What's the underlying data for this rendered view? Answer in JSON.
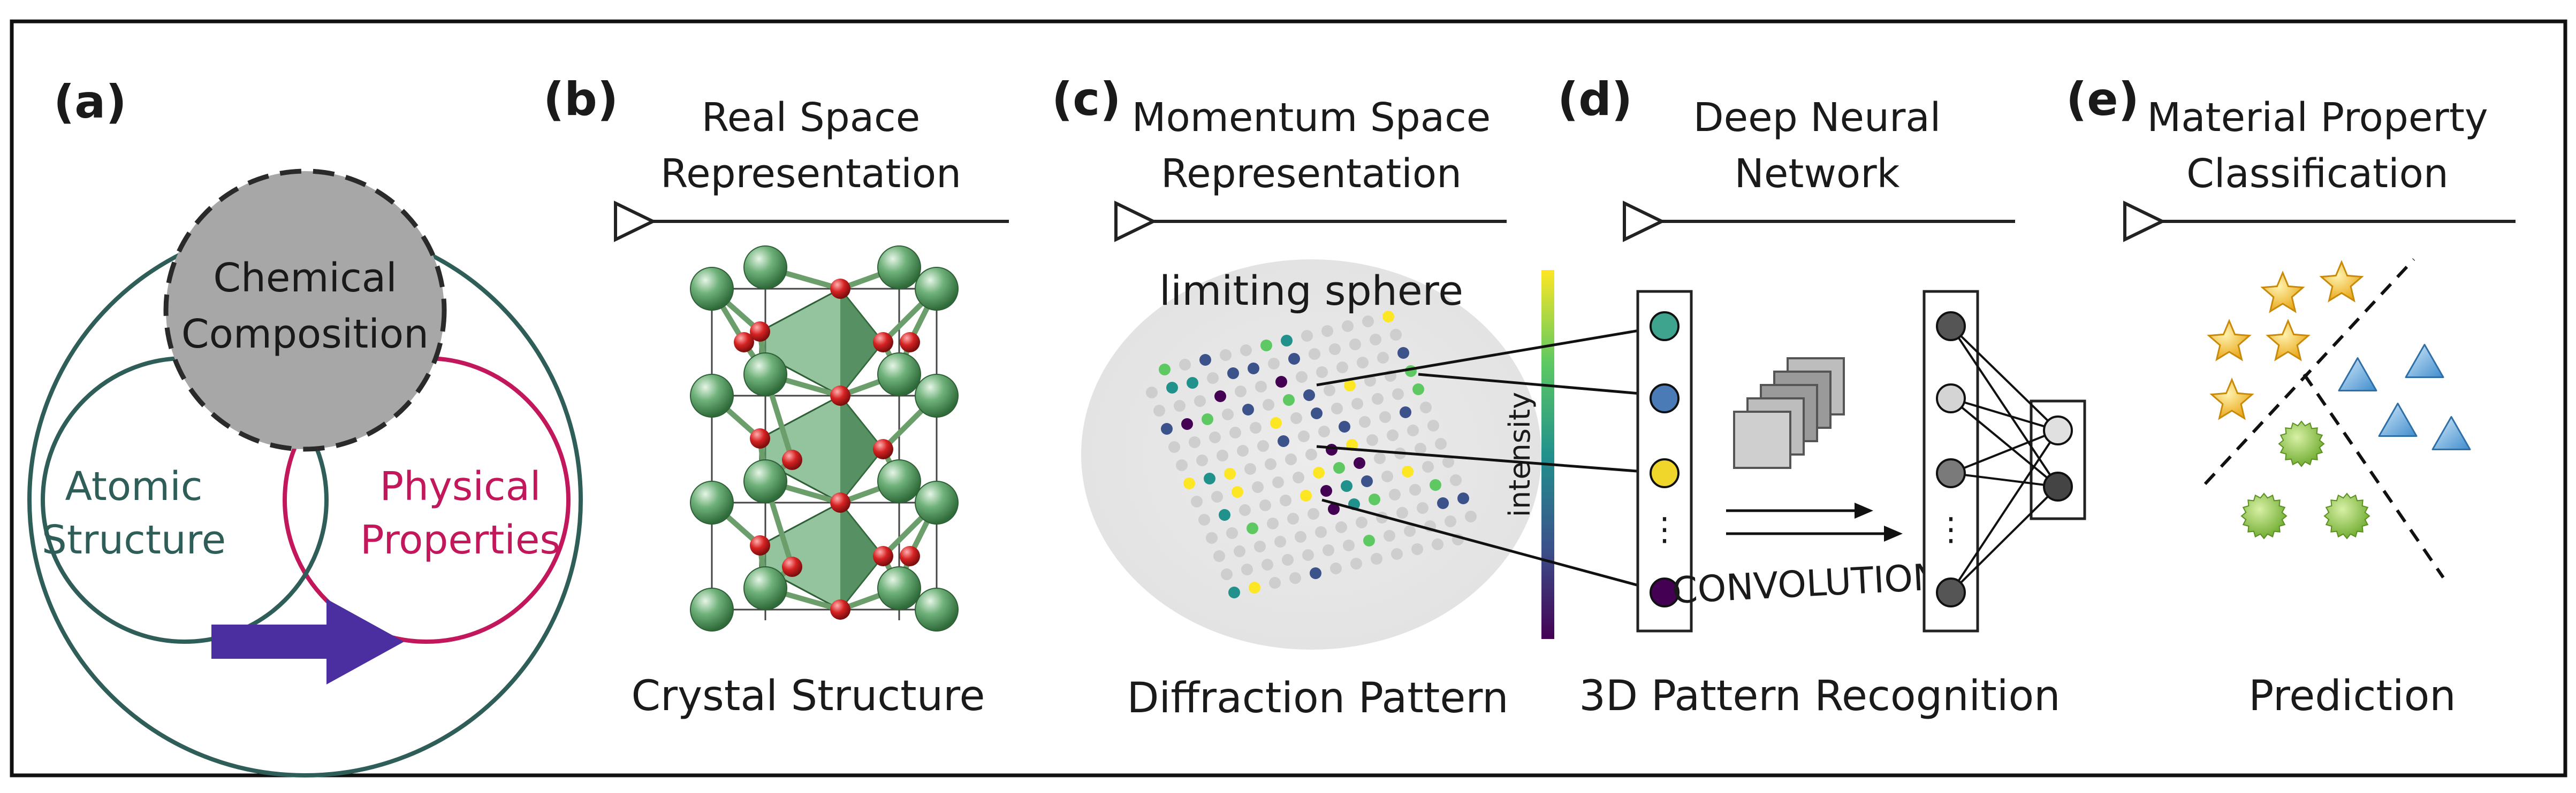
{
  "panels": {
    "a": {
      "letter": "(a)",
      "chemical_line1": "Chemical",
      "chemical_line2": "Composition",
      "atomic_line1": "Atomic",
      "atomic_line2": "Structure",
      "physical_line1": "Physical",
      "physical_line2": "Properties"
    },
    "b": {
      "letter": "(b)",
      "heading_line1": "Real Space",
      "heading_line2": "Representation",
      "caption": "Crystal Structure"
    },
    "c": {
      "letter": "(c)",
      "heading_line1": "Momentum Space",
      "heading_line2": "Representation",
      "sphere_label": "limiting sphere",
      "colorbar_label": "intensity",
      "caption": "Diffraction Pattern"
    },
    "d": {
      "letter": "(d)",
      "heading_line1": "Deep Neural",
      "heading_line2": "Network",
      "convolution_label": "CONVOLUTION",
      "caption": "3D Pattern Recognition"
    },
    "e": {
      "letter": "(e)",
      "heading_line1": "Material Property",
      "heading_line2": "Classification",
      "caption": "Prediction"
    }
  },
  "colors": {
    "chemical_fill": "#a7a7a7",
    "atomic_stroke": "#2e5e57",
    "physical_stroke": "#c2185b",
    "arrow": "#4b2fa0",
    "atom_green": "#4f9a5a",
    "atom_red": "#cc2020",
    "star": "#f2b21c",
    "triangle": "#6fb2e6",
    "gear": "#8cc63f"
  },
  "icons": [
    "timeline-triangle-icon",
    "star-icon",
    "triangle-icon",
    "gear-icon"
  ]
}
